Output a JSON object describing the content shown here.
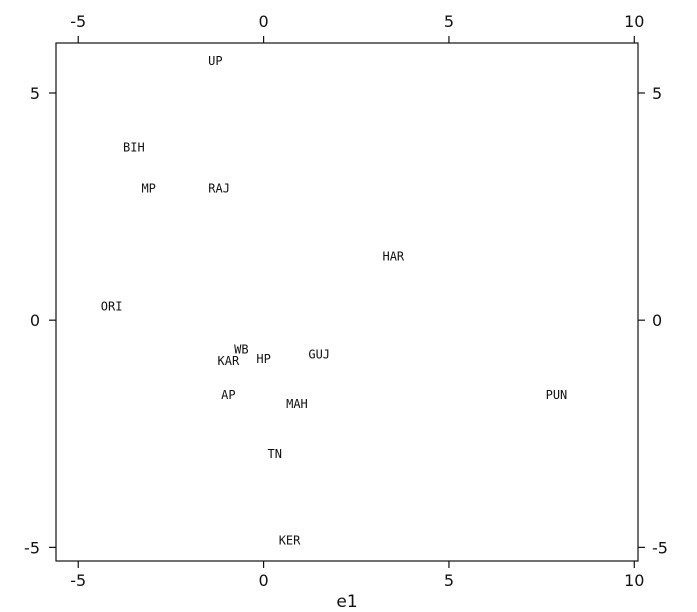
{
  "chart_data": {
    "type": "scatter",
    "xlabel": "e1",
    "ylabel": "",
    "xlim": [
      -5.6,
      10.1
    ],
    "ylim": [
      -5.3,
      6.1
    ],
    "xticks": [
      -5,
      0,
      5,
      10
    ],
    "yticks": [
      -5,
      0,
      5
    ],
    "tick_labels_x": [
      "-5",
      "0",
      "5",
      "10"
    ],
    "tick_labels_y": [
      "-5",
      "0",
      "5"
    ],
    "grid": false,
    "points": [
      {
        "label": "UP",
        "x": -1.3,
        "y": 5.7
      },
      {
        "label": "BIH",
        "x": -3.5,
        "y": 3.8
      },
      {
        "label": "MP",
        "x": -3.1,
        "y": 2.9
      },
      {
        "label": "RAJ",
        "x": -1.2,
        "y": 2.9
      },
      {
        "label": "HAR",
        "x": 3.5,
        "y": 1.4
      },
      {
        "label": "ORI",
        "x": -4.1,
        "y": 0.3
      },
      {
        "label": "WB",
        "x": -0.6,
        "y": -0.65
      },
      {
        "label": "KAR",
        "x": -0.95,
        "y": -0.9
      },
      {
        "label": "HP",
        "x": 0.0,
        "y": -0.85
      },
      {
        "label": "GUJ",
        "x": 1.5,
        "y": -0.75
      },
      {
        "label": "AP",
        "x": -0.95,
        "y": -1.65
      },
      {
        "label": "MAH",
        "x": 0.9,
        "y": -1.85
      },
      {
        "label": "PUN",
        "x": 7.9,
        "y": -1.65
      },
      {
        "label": "TN",
        "x": 0.3,
        "y": -2.95
      },
      {
        "label": "KER",
        "x": 0.7,
        "y": -4.85
      }
    ]
  }
}
